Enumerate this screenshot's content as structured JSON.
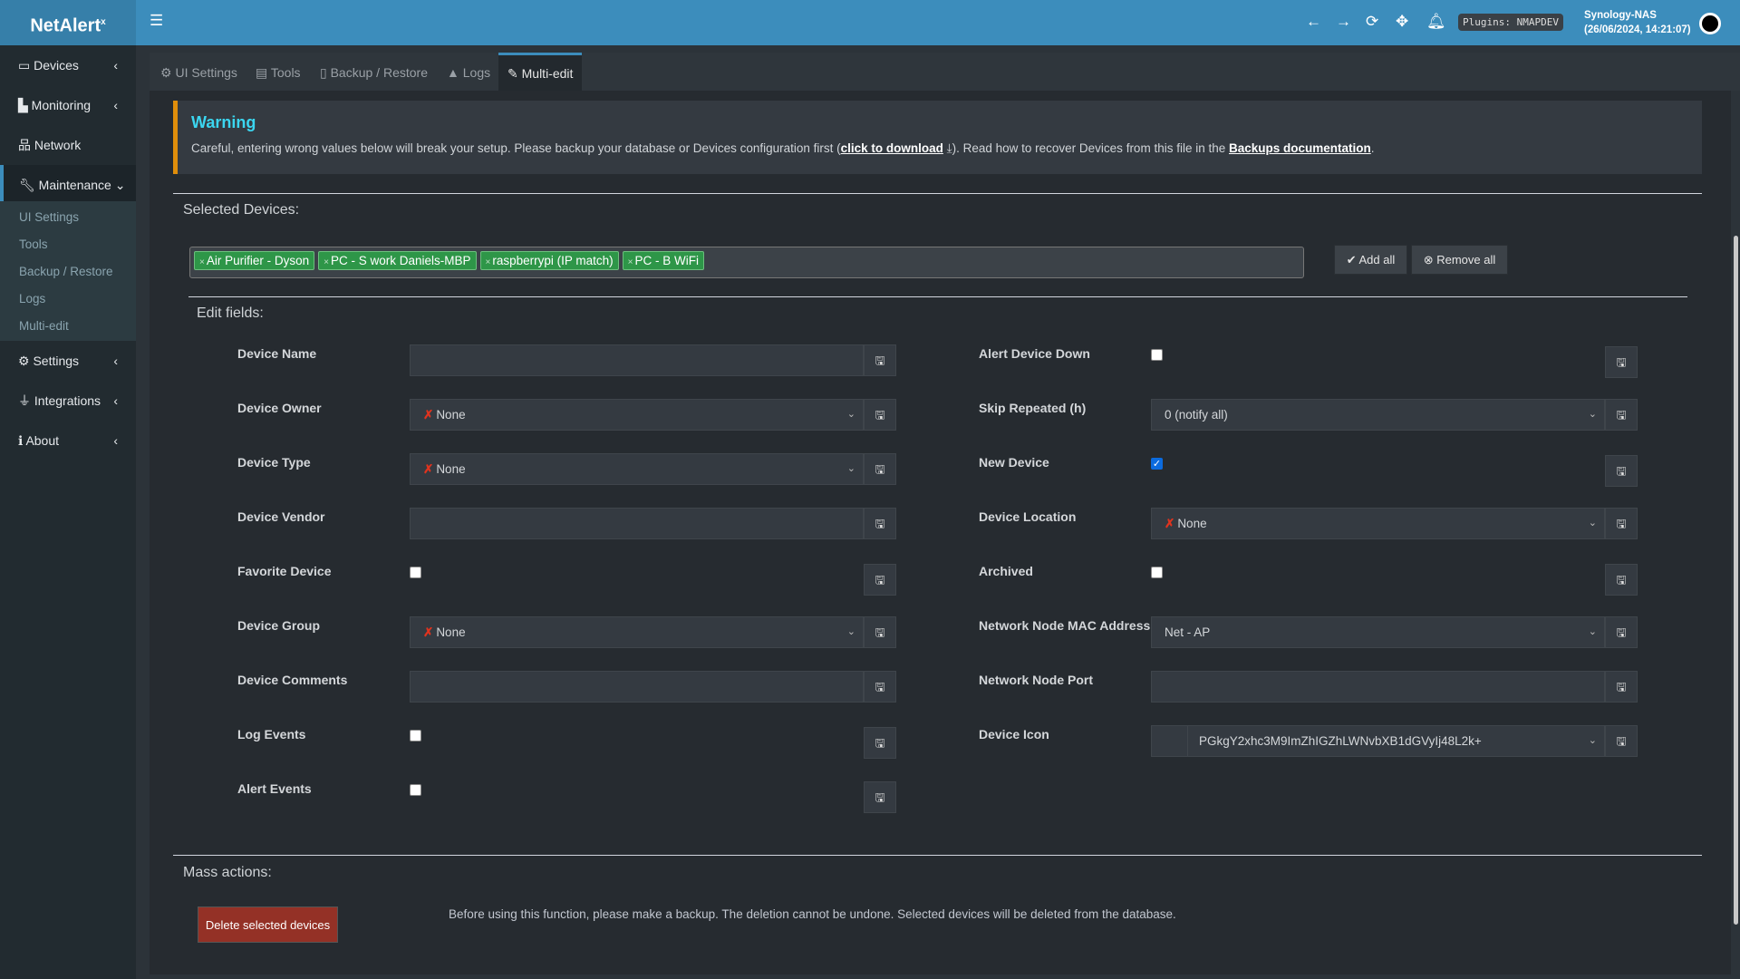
{
  "app": {
    "logo": "NetAlert",
    "logo_sup": "x",
    "plugins_badge": "Plugins: NMAPDEV",
    "host": "Synology-NAS",
    "datetime": "(26/06/2024, 14:21:07)"
  },
  "sidebar": {
    "items": [
      {
        "label": "Devices"
      },
      {
        "label": "Monitoring"
      },
      {
        "label": "Network"
      },
      {
        "label": "Maintenance"
      },
      {
        "label": "Settings"
      },
      {
        "label": "Integrations"
      },
      {
        "label": "About"
      }
    ],
    "submenu": [
      "UI Settings",
      "Tools",
      "Backup / Restore",
      "Logs",
      "Multi-edit"
    ]
  },
  "tabs": [
    {
      "label": "UI Settings"
    },
    {
      "label": "Tools"
    },
    {
      "label": "Backup / Restore"
    },
    {
      "label": "Logs"
    },
    {
      "label": "Multi-edit",
      "active": true
    }
  ],
  "warning": {
    "title": "Warning",
    "text1": "Careful, entering wrong values below will break your setup. Please backup your database or Devices configuration first (",
    "link1": "click to download",
    "text2": "). Read how to recover Devices from this file in the ",
    "link2": "Backups documentation",
    "text3": "."
  },
  "selected": {
    "title": "Selected Devices:",
    "tags": [
      "Air Purifier - Dyson",
      "PC - S work Daniels-MBP",
      "raspberrypi (IP match)",
      "PC - B WiFi"
    ],
    "add_all": "Add all",
    "remove_all": "Remove all"
  },
  "edit": {
    "title": "Edit fields:",
    "left": [
      {
        "label": "Device Name",
        "type": "text",
        "value": ""
      },
      {
        "label": "Device Owner",
        "type": "select",
        "value": "None",
        "x": true
      },
      {
        "label": "Device Type",
        "type": "select",
        "value": "None",
        "x": true
      },
      {
        "label": "Device Vendor",
        "type": "text",
        "value": ""
      },
      {
        "label": "Favorite Device",
        "type": "checkbox",
        "checked": false
      },
      {
        "label": "Device Group",
        "type": "select",
        "value": "None",
        "x": true
      },
      {
        "label": "Device Comments",
        "type": "text",
        "value": ""
      },
      {
        "label": "Log Events",
        "type": "checkbox",
        "checked": false
      },
      {
        "label": "Alert Events",
        "type": "checkbox",
        "checked": false
      }
    ],
    "right": [
      {
        "label": "Alert Device Down",
        "type": "checkbox",
        "checked": false
      },
      {
        "label": "Skip Repeated (h)",
        "type": "select",
        "value": "0 (notify all)"
      },
      {
        "label": "New Device",
        "type": "checkbox",
        "checked": true
      },
      {
        "label": "Device Location",
        "type": "select",
        "value": "None",
        "x": true
      },
      {
        "label": "Archived",
        "type": "checkbox",
        "checked": false
      },
      {
        "label": "Network Node MAC Address",
        "type": "select",
        "value": "Net - AP"
      },
      {
        "label": "Network Node Port",
        "type": "text",
        "value": ""
      },
      {
        "label": "Device Icon",
        "type": "icon-select",
        "value": "PGkgY2xhc3M9ImZhIGZhLWNvbXB1dGVyIj48L2k+"
      }
    ]
  },
  "mass": {
    "title": "Mass actions:",
    "delete_label": "Delete selected devices",
    "note": "Before using this function, please make a backup. The deletion cannot be undone. Selected devices will be deleted from the database."
  },
  "colors": {
    "topbar": "#3c8dbc",
    "warning_border": "#e08e0b",
    "warning_title": "#3bd6f0",
    "tag": "#2e9648",
    "danger": "#943126"
  }
}
